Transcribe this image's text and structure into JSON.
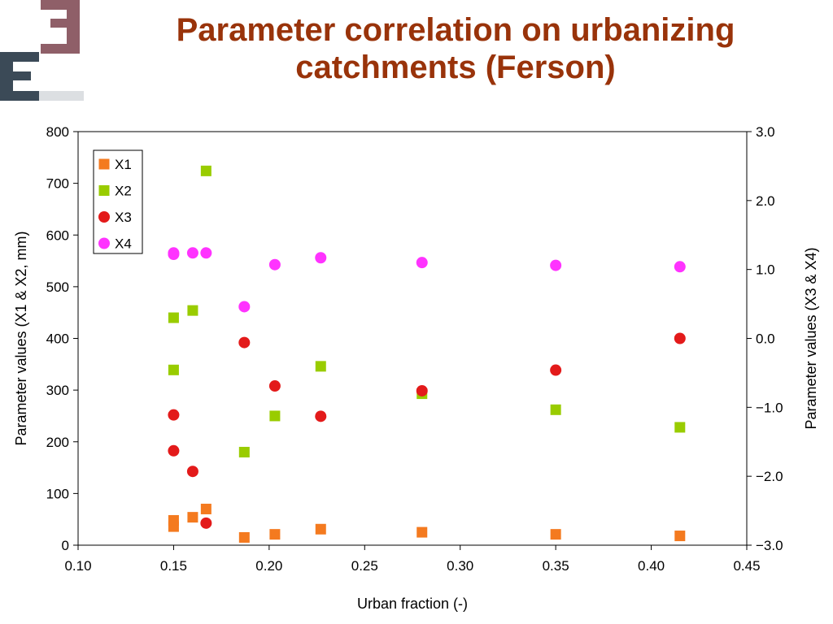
{
  "slide": {
    "title": "Parameter correlation on urbanizing catchments (Ferson)",
    "accent_title_color": "#99330A"
  },
  "logo": {
    "name": "EE logo",
    "colors": [
      "#8F5F68",
      "#3B4A57"
    ]
  },
  "chart_data": {
    "type": "scatter",
    "title": "Parameter correlation on urbanizing catchments (Ferson)",
    "xlabel": "Urban fraction (-)",
    "ylabel": "Parameter values (X1 & X2, mm)",
    "y2label": "Parameter values (X3 & X4)",
    "xlim": [
      0.1,
      0.45
    ],
    "ylim": [
      0,
      800
    ],
    "y2lim": [
      -3.0,
      3.0
    ],
    "xticks": [
      "0.10",
      "0.15",
      "0.20",
      "0.25",
      "0.30",
      "0.35",
      "0.40",
      "0.45"
    ],
    "yticks": [
      "0",
      "100",
      "200",
      "300",
      "400",
      "500",
      "600",
      "700",
      "800"
    ],
    "y2ticks": [
      "−3.0",
      "−2.0",
      "−1.0",
      "0.0",
      "1.0",
      "2.0",
      "3.0"
    ],
    "grid": false,
    "legend_position": "top-left",
    "series": [
      {
        "name": "X1",
        "axis": "left",
        "marker": "square",
        "color": "#F47A1F",
        "points": [
          [
            0.15,
            36
          ],
          [
            0.15,
            48
          ],
          [
            0.16,
            54
          ],
          [
            0.167,
            70
          ],
          [
            0.187,
            15
          ],
          [
            0.203,
            21
          ],
          [
            0.227,
            31
          ],
          [
            0.28,
            25
          ],
          [
            0.35,
            21
          ],
          [
            0.415,
            18
          ]
        ]
      },
      {
        "name": "X2",
        "axis": "left",
        "marker": "square",
        "color": "#99CC00",
        "points": [
          [
            0.15,
            440
          ],
          [
            0.15,
            339
          ],
          [
            0.16,
            454
          ],
          [
            0.167,
            724
          ],
          [
            0.187,
            180
          ],
          [
            0.203,
            250
          ],
          [
            0.227,
            346
          ],
          [
            0.28,
            293
          ],
          [
            0.35,
            262
          ],
          [
            0.415,
            228
          ]
        ]
      },
      {
        "name": "X3",
        "axis": "right",
        "marker": "circle",
        "color": "#E31A1A",
        "points": [
          [
            0.15,
            -1.11
          ],
          [
            0.15,
            -1.63
          ],
          [
            0.16,
            -1.93
          ],
          [
            0.167,
            -2.68
          ],
          [
            0.187,
            -0.06
          ],
          [
            0.203,
            -0.69
          ],
          [
            0.227,
            -1.13
          ],
          [
            0.28,
            -0.76
          ],
          [
            0.35,
            -0.46
          ],
          [
            0.415,
            0.0
          ]
        ]
      },
      {
        "name": "X4",
        "axis": "right",
        "marker": "circle",
        "color": "#FF33FF",
        "points": [
          [
            0.15,
            1.22
          ],
          [
            0.15,
            1.24
          ],
          [
            0.16,
            1.24
          ],
          [
            0.167,
            1.24
          ],
          [
            0.187,
            0.46
          ],
          [
            0.203,
            1.07
          ],
          [
            0.227,
            1.17
          ],
          [
            0.28,
            1.1
          ],
          [
            0.35,
            1.06
          ],
          [
            0.415,
            1.04
          ]
        ]
      }
    ]
  }
}
